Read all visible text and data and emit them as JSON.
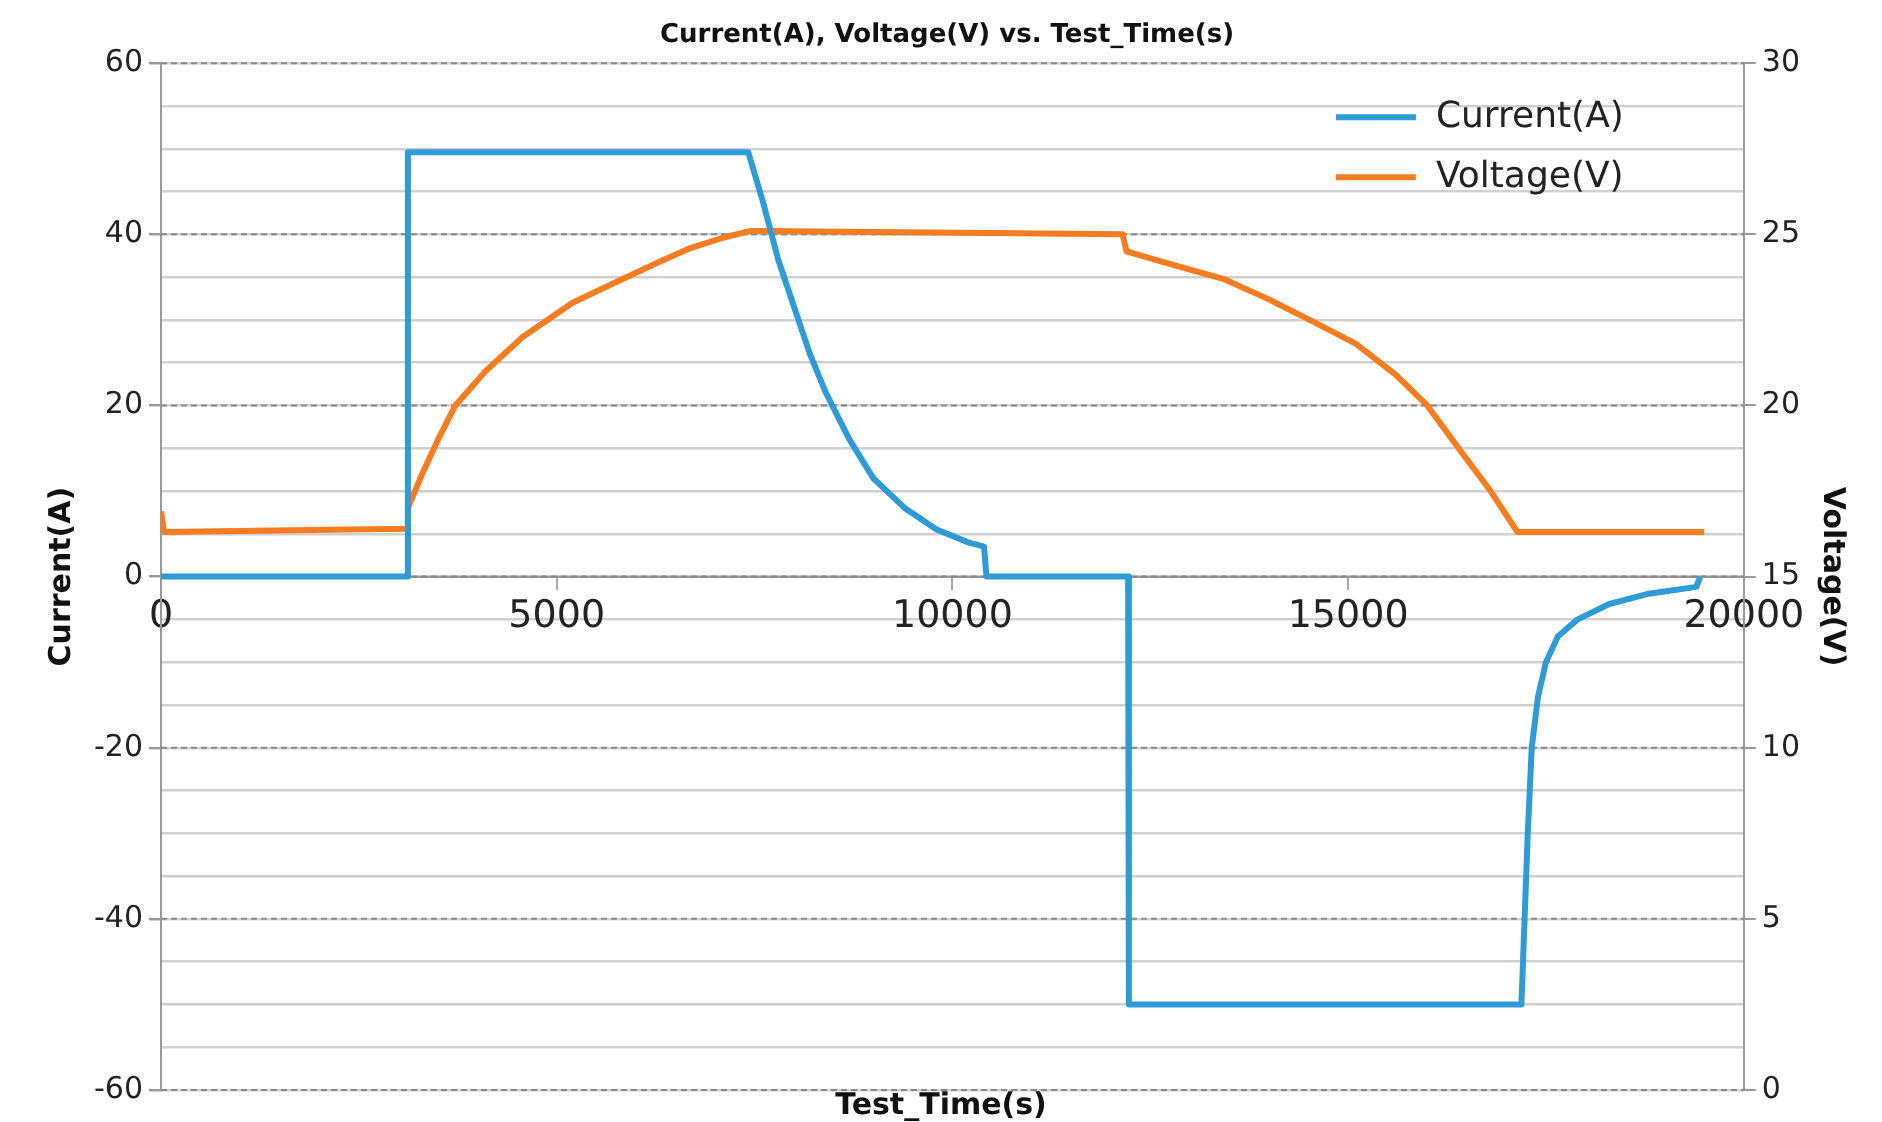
{
  "chart_data": {
    "type": "line",
    "title": "Current(A), Voltage(V) vs. Test_Time(s)",
    "xlabel": "Test_Time(s)",
    "ylabel": "Current(A)",
    "y2label": "Voltage(V)",
    "xlim": [
      0,
      20000
    ],
    "xticks": [
      0,
      5000,
      10000,
      15000,
      20000
    ],
    "ylim": [
      -60,
      60
    ],
    "yticks": [
      -60,
      {
        "value": -55,
        "label": null
      },
      {
        "value": -50,
        "label": null
      },
      {
        "value": -45,
        "label": null
      },
      -40,
      {
        "value": -35,
        "label": null
      },
      {
        "value": -30,
        "label": null
      },
      {
        "value": -25,
        "label": null
      },
      -20,
      {
        "value": -15,
        "label": null
      },
      {
        "value": -10,
        "label": null
      },
      {
        "value": -5,
        "label": null
      },
      0,
      {
        "value": 5,
        "label": null
      },
      {
        "value": 10,
        "label": null
      },
      {
        "value": 15,
        "label": null
      },
      20,
      {
        "value": 25,
        "label": null
      },
      {
        "value": 30,
        "label": null
      },
      {
        "value": 35,
        "label": null
      },
      40,
      {
        "value": 45,
        "label": null
      },
      {
        "value": 50,
        "label": null
      },
      {
        "value": 55,
        "label": null
      },
      60
    ],
    "y2lim": [
      0,
      30
    ],
    "y2ticks": [
      0,
      5,
      10,
      15,
      20,
      25,
      30
    ],
    "grid": "y",
    "legend": "top right",
    "marker": "none",
    "line_style": "solid",
    "series": [
      {
        "name": "Current(A)",
        "color": "#2e9bd6",
        "x": [
          0,
          3110,
          3120,
          7420,
          7600,
          7800,
          8000,
          8200,
          8400,
          8700,
          9000,
          9400,
          9800,
          10200,
          10400,
          10430,
          12220,
          12230,
          17190,
          17230,
          17270,
          17320,
          17400,
          17500,
          17650,
          17900,
          18300,
          18800,
          19400,
          19450
        ],
        "values": [
          0,
          0,
          49.6,
          49.6,
          44,
          37,
          31.5,
          26,
          21.5,
          16,
          11.5,
          8,
          5.5,
          4,
          3.5,
          0,
          0,
          -50,
          -50,
          -40,
          -30,
          -20,
          -14,
          -10,
          -7,
          -5,
          -3.2,
          -2,
          -1.2,
          0
        ]
      },
      {
        "name": "Voltage(V)",
        "color": "#f57c20",
        "axis": "y2",
        "x": [
          0,
          40,
          3110,
          3120,
          3300,
          3500,
          3720,
          4100,
          4570,
          5200,
          5840,
          6300,
          6690,
          7100,
          7450,
          12150,
          12200,
          12800,
          13420,
          14000,
          14600,
          15100,
          15600,
          16000,
          16380,
          16800,
          17140,
          19500
        ],
        "values": [
          16.9,
          16.3,
          16.4,
          17,
          18,
          19,
          20,
          21,
          22,
          23,
          23.7,
          24.2,
          24.6,
          24.9,
          25.1,
          25,
          24.5,
          24.1,
          23.7,
          23.1,
          22.4,
          21.8,
          20.9,
          20,
          18.8,
          17.5,
          16.3,
          16.3
        ]
      }
    ]
  }
}
